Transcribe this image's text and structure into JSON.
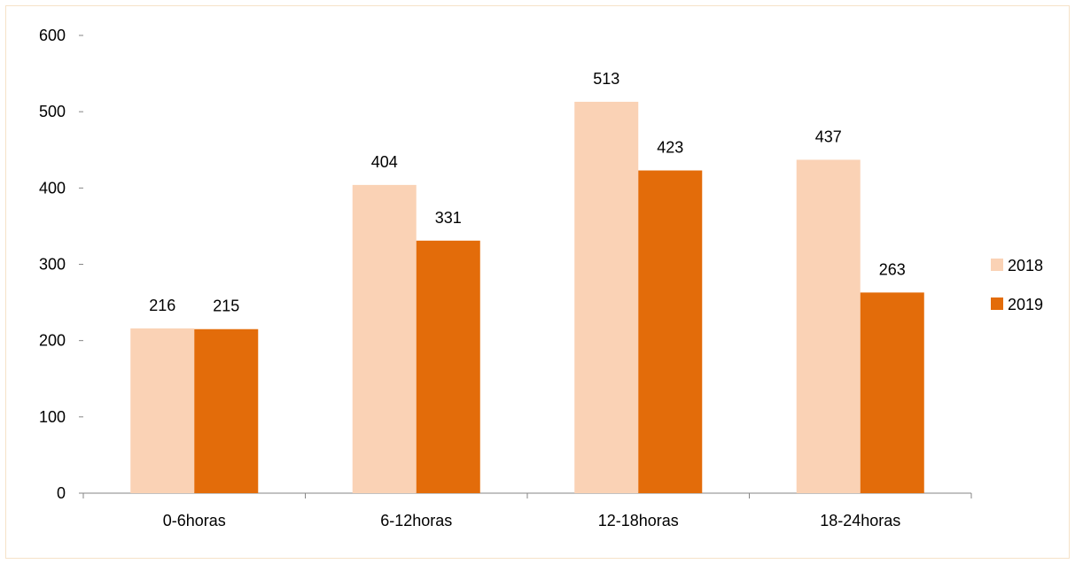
{
  "chart_data": {
    "type": "bar",
    "title": "",
    "xlabel": "",
    "ylabel": "",
    "categories": [
      "0-6horas",
      "6-12horas",
      "12-18horas",
      "18-24horas"
    ],
    "series": [
      {
        "name": "2018",
        "values": [
          216,
          404,
          513,
          437
        ],
        "color": "#fad2b5"
      },
      {
        "name": "2019",
        "values": [
          215,
          331,
          423,
          263
        ],
        "color": "#e36c0a"
      }
    ],
    "ylim": [
      0,
      600
    ],
    "yticks": [
      0,
      100,
      200,
      300,
      400,
      500,
      600
    ],
    "grid": false,
    "data_labels": true,
    "legend_position": "right"
  }
}
